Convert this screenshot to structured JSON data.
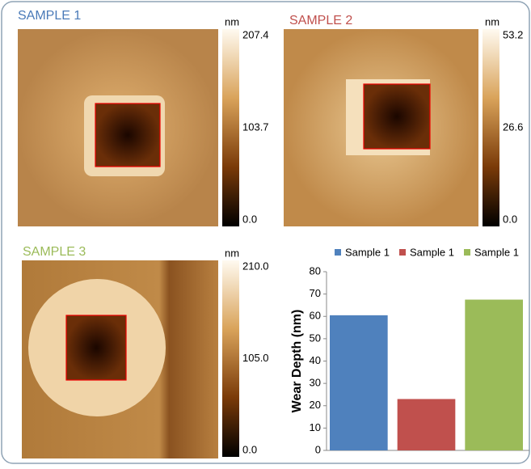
{
  "images": [
    {
      "title": "SAMPLE 1",
      "unit": "nm",
      "colorbar_labels": [
        "207.4",
        "103.7",
        "0.0"
      ]
    },
    {
      "title": "SAMPLE 2",
      "unit": "nm",
      "colorbar_labels": [
        "53.2",
        "26.6",
        "0.0"
      ]
    },
    {
      "title": "SAMPLE 3",
      "unit": "nm",
      "colorbar_labels": [
        "210.0",
        "105.0",
        "0.0"
      ]
    }
  ],
  "chart_data": {
    "type": "bar",
    "y_label": "Wear Depth (nm)",
    "categories": [
      null
    ],
    "series": [
      {
        "name": "Sample 1",
        "color": "#4f81bd",
        "values": [
          60.5
        ]
      },
      {
        "name": "Sample 1",
        "color": "#c0504d",
        "values": [
          23
        ]
      },
      {
        "name": "Sample 1",
        "color": "#9bbb59",
        "values": [
          67.5
        ]
      }
    ],
    "ylim": [
      0,
      80
    ],
    "yticks": [
      0,
      10,
      20,
      30,
      40,
      50,
      60,
      70,
      80
    ],
    "grid": false,
    "legend": "top"
  }
}
